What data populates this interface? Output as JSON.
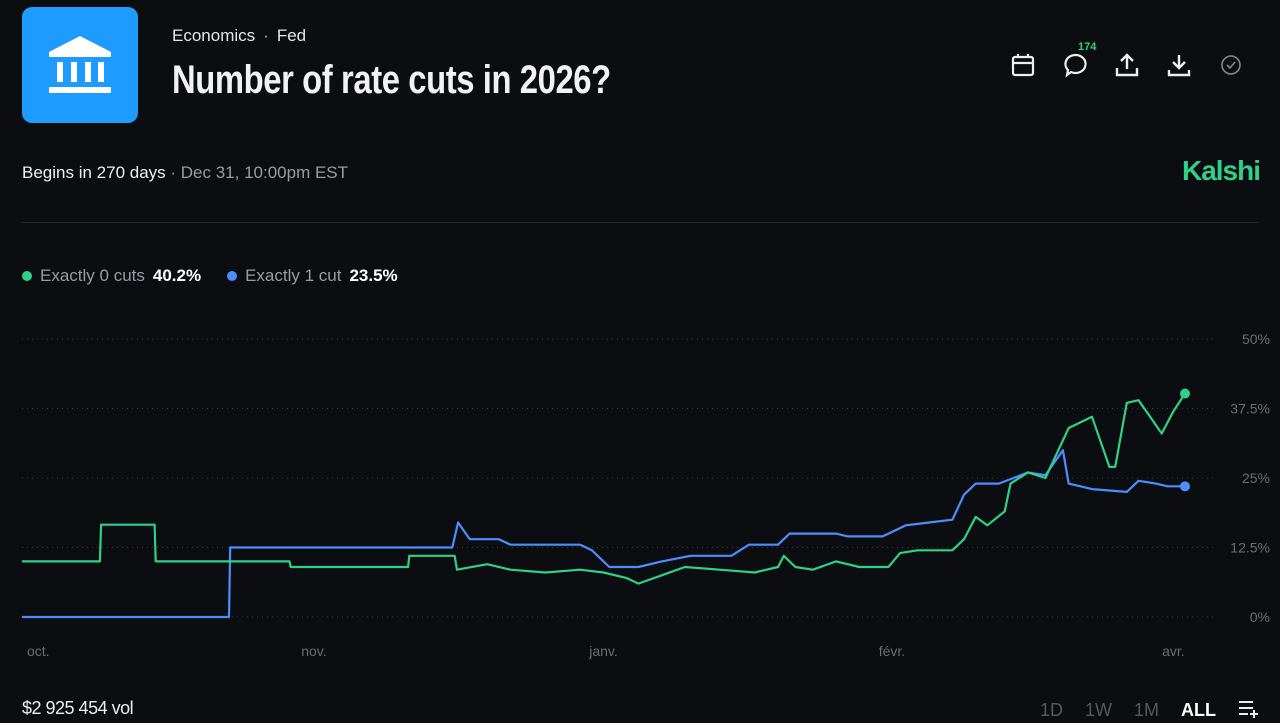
{
  "header": {
    "category": "Economics",
    "subcategory": "Fed",
    "title": "Number of rate cuts in 2026?",
    "comment_count": "174"
  },
  "status": {
    "begins": "Begins in 270 days",
    "date": "Dec 31, 10:00pm EST"
  },
  "brand": "Kalshi",
  "legend": [
    {
      "label": "Exactly 0 cuts",
      "value": "40.2%",
      "color": "#2fd18a"
    },
    {
      "label": "Exactly 1 cut",
      "value": "23.5%",
      "color": "#4c8dff"
    }
  ],
  "footer": {
    "volume": "$2 925 454 vol",
    "ranges": [
      "1D",
      "1W",
      "1M",
      "ALL"
    ],
    "active_range": "ALL"
  },
  "chart_data": {
    "type": "line",
    "x_range": [
      0,
      100
    ],
    "ylim": [
      0,
      50
    ],
    "y_ticks": [
      {
        "v": 50,
        "label": "50%"
      },
      {
        "v": 37.5,
        "label": "37.5%"
      },
      {
        "v": 25,
        "label": "25%"
      },
      {
        "v": 12.5,
        "label": "12.5%"
      },
      {
        "v": 0,
        "label": "0%"
      }
    ],
    "x_ticks": [
      {
        "t": 1.4,
        "label": "oct."
      },
      {
        "t": 25.1,
        "label": "nov."
      },
      {
        "t": 50,
        "label": "janv."
      },
      {
        "t": 74.8,
        "label": "févr."
      },
      {
        "t": 99,
        "label": "avr."
      }
    ],
    "series": [
      {
        "name": "Exactly 0 cuts",
        "color": "#2fd18a",
        "points": [
          [
            0,
            10
          ],
          [
            6.7,
            10
          ],
          [
            6.8,
            16.6
          ],
          [
            11.4,
            16.6
          ],
          [
            11.5,
            10
          ],
          [
            23,
            10
          ],
          [
            23.1,
            9
          ],
          [
            33.2,
            9
          ],
          [
            33.3,
            11
          ],
          [
            37.2,
            11
          ],
          [
            37.4,
            8.5
          ],
          [
            40,
            9.5
          ],
          [
            42,
            8.5
          ],
          [
            45,
            8
          ],
          [
            48,
            8.5
          ],
          [
            50,
            8
          ],
          [
            52,
            7
          ],
          [
            53,
            6
          ],
          [
            55,
            7.5
          ],
          [
            57,
            9
          ],
          [
            60,
            8.5
          ],
          [
            63,
            8
          ],
          [
            65,
            9
          ],
          [
            65.5,
            11
          ],
          [
            66.5,
            9
          ],
          [
            68,
            8.5
          ],
          [
            70,
            10
          ],
          [
            72,
            9
          ],
          [
            74.5,
            9
          ],
          [
            75.5,
            11.5
          ],
          [
            77,
            12
          ],
          [
            80,
            12
          ],
          [
            81,
            14
          ],
          [
            82,
            18
          ],
          [
            83,
            16.5
          ],
          [
            84.5,
            19
          ],
          [
            85,
            24
          ],
          [
            86.5,
            26
          ],
          [
            88,
            25
          ],
          [
            90,
            34
          ],
          [
            92,
            36
          ],
          [
            93.5,
            27
          ],
          [
            94,
            27
          ],
          [
            95,
            38.5
          ],
          [
            96,
            39
          ],
          [
            97,
            36
          ],
          [
            98,
            33
          ],
          [
            99,
            37
          ],
          [
            100,
            40.2
          ]
        ]
      },
      {
        "name": "Exactly 1 cut",
        "color": "#4c8dff",
        "points": [
          [
            0,
            0
          ],
          [
            17.8,
            0
          ],
          [
            17.9,
            12.5
          ],
          [
            37,
            12.5
          ],
          [
            37.5,
            17
          ],
          [
            38.5,
            14
          ],
          [
            41,
            14
          ],
          [
            42,
            13
          ],
          [
            48,
            13
          ],
          [
            49,
            12
          ],
          [
            50.5,
            9
          ],
          [
            53,
            9
          ],
          [
            55,
            10
          ],
          [
            57.5,
            11
          ],
          [
            61,
            11
          ],
          [
            62.5,
            13
          ],
          [
            65,
            13
          ],
          [
            66,
            15
          ],
          [
            70,
            15
          ],
          [
            71,
            14.5
          ],
          [
            74,
            14.5
          ],
          [
            76,
            16.5
          ],
          [
            78,
            17
          ],
          [
            80,
            17.5
          ],
          [
            81,
            22
          ],
          [
            82,
            24
          ],
          [
            84,
            24
          ],
          [
            86.5,
            26
          ],
          [
            88,
            25.5
          ],
          [
            89.5,
            30
          ],
          [
            90,
            24
          ],
          [
            92,
            23
          ],
          [
            95,
            22.5
          ],
          [
            96,
            24.5
          ],
          [
            97.5,
            24
          ],
          [
            98.5,
            23.5
          ],
          [
            100,
            23.5
          ]
        ]
      }
    ]
  }
}
